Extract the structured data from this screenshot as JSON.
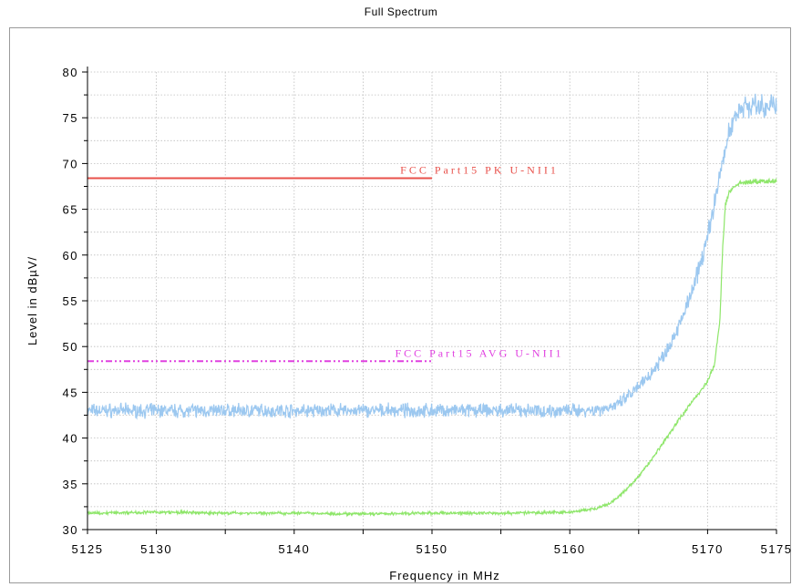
{
  "chart_data": {
    "type": "line",
    "title": "Full Spectrum",
    "xlabel": "Frequency in MHz",
    "ylabel": "Level in dBµV/",
    "xlim": [
      5125,
      5175
    ],
    "ylim": [
      30,
      80
    ],
    "x_ticks": [
      5125,
      5130,
      5140,
      5150,
      5160,
      5170,
      5175
    ],
    "y_ticks": [
      30,
      35,
      40,
      45,
      50,
      55,
      60,
      65,
      70,
      75,
      80
    ],
    "grid": true,
    "limit_lines": [
      {
        "label": "FCC Part15 PK U-NII1",
        "value": 68.4,
        "x_range": [
          5125,
          5150
        ],
        "color": "#e8504a",
        "style": "solid"
      },
      {
        "label": "FCC Part15 AVG U-NII1",
        "value": 48.4,
        "x_range": [
          5125,
          5150
        ],
        "color": "#e040e0",
        "style": "dashdotdot"
      }
    ],
    "series": [
      {
        "color": "#9cc8f0",
        "noise": 0.9,
        "x": [
          5125,
          5130,
          5135,
          5140,
          5145,
          5150,
          5155,
          5160,
          5162,
          5163.5,
          5165,
          5166,
          5167,
          5168,
          5169,
          5170,
          5171,
          5171.5,
          5172,
          5172.5,
          5173,
          5174,
          5175
        ],
        "values": [
          43.0,
          43.0,
          43.0,
          43.0,
          43.0,
          43.0,
          43.0,
          43.0,
          43.1,
          43.6,
          45.5,
          47.3,
          49.5,
          52.5,
          56.5,
          62.0,
          69.5,
          73.0,
          75.3,
          76.2,
          76.3,
          76.2,
          76.5
        ]
      },
      {
        "color": "#8ee66a",
        "noise": 0.2,
        "x": [
          5125,
          5130,
          5135,
          5140,
          5145,
          5150,
          5155,
          5160,
          5162,
          5163,
          5164,
          5165,
          5166,
          5167,
          5168,
          5169,
          5170,
          5170.5,
          5170.9,
          5171.1,
          5171.3,
          5171.6,
          5172,
          5172.5,
          5173,
          5174,
          5175
        ],
        "values": [
          31.8,
          31.9,
          31.8,
          31.8,
          31.7,
          31.8,
          31.8,
          31.9,
          32.3,
          32.9,
          34.2,
          35.8,
          37.8,
          40.0,
          42.2,
          44.2,
          46.2,
          48.0,
          53.0,
          61.0,
          65.5,
          67.0,
          67.6,
          67.9,
          68.0,
          68.0,
          68.1
        ]
      }
    ]
  }
}
